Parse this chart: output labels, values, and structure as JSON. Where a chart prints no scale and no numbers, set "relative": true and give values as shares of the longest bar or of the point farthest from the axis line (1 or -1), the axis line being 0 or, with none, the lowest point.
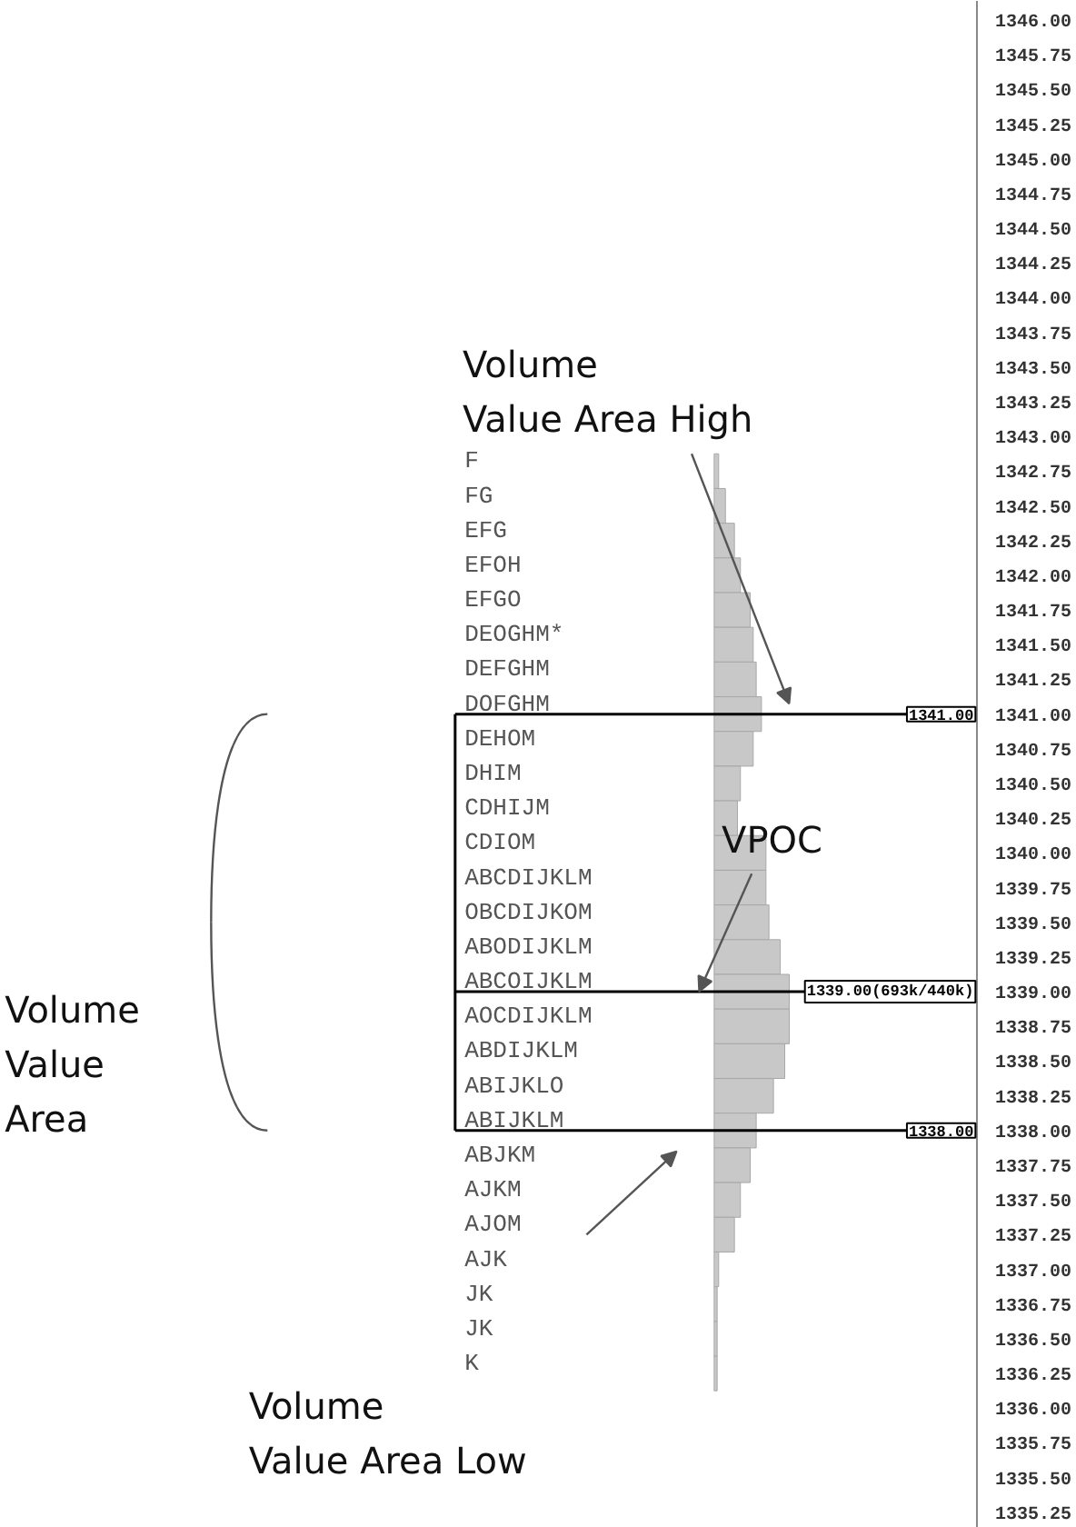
{
  "chart_data": {
    "type": "bar",
    "orientation": "horizontal",
    "relative": true,
    "categories": [
      "1346.00",
      "1345.75",
      "1345.50",
      "1345.25",
      "1345.00",
      "1344.75",
      "1344.50",
      "1344.25",
      "1344.00",
      "1343.75",
      "1343.50",
      "1343.25",
      "1343.00",
      "1342.75",
      "1342.50",
      "1342.25",
      "1342.00",
      "1341.75",
      "1341.50",
      "1341.25",
      "1341.00",
      "1340.75",
      "1340.50",
      "1340.25",
      "1340.00",
      "1339.75",
      "1339.50",
      "1339.25",
      "1339.00",
      "1338.75",
      "1338.50",
      "1338.25",
      "1338.00",
      "1337.75",
      "1337.50",
      "1337.25",
      "1337.00",
      "1336.75",
      "1336.50",
      "1336.25",
      "1336.00",
      "1335.75",
      "1335.50",
      "1335.25"
    ],
    "values": [
      null,
      null,
      null,
      null,
      null,
      null,
      null,
      null,
      null,
      null,
      null,
      null,
      null,
      0.06,
      0.15,
      0.27,
      0.35,
      0.48,
      0.52,
      0.56,
      0.63,
      0.52,
      0.35,
      0.31,
      0.69,
      0.69,
      0.73,
      0.88,
      1,
      1,
      0.94,
      0.79,
      0.56,
      0.48,
      0.35,
      0.27,
      0.06,
      0.04,
      0.04,
      0.04,
      null,
      null,
      null,
      null
    ],
    "color": "#c8c8c8",
    "ref_lines": [
      {
        "axis": "y",
        "value": "1341.00",
        "label": "1341.00"
      },
      {
        "axis": "y",
        "value": "1339.00",
        "label": "1339.00(693k/440k)"
      },
      {
        "axis": "y",
        "value": "1338.00",
        "label": "1338.00"
      }
    ],
    "annotations": [
      "Volume\nValue Area High",
      "VPOC",
      "Volume\nValue\nArea",
      "Volume\nValue Area Low",
      "F",
      "FG",
      "EFG",
      "EFOH",
      "EFGO",
      "DEOGHM*",
      "DEFGHM",
      "DOFGHM",
      "DEHOM",
      "DHIM",
      "CDHIJM",
      "CDIOM",
      "ABCDIJKLM",
      "OBCDIJKOM",
      "ABODIJKLM",
      "ABCOIJKLM",
      "AOCDIJKLM",
      "ABDIJKLM",
      "ABIJKLO",
      "ABIJKLM",
      "ABJKM",
      "AJKM",
      "AJOM",
      "AJK",
      "JK",
      "JK",
      "K"
    ]
  }
}
